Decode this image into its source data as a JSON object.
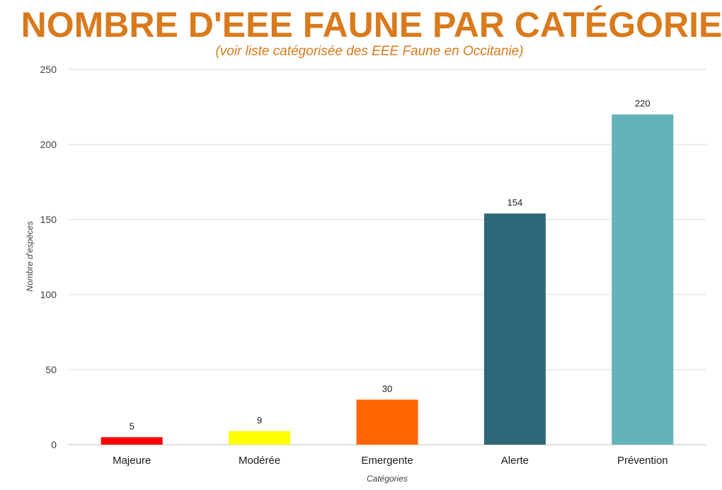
{
  "chart_data": {
    "type": "bar",
    "title": "NOMBRE D'EEE FAUNE PAR CATÉGORIE",
    "subtitle": "(voir liste catégorisée des EEE Faune en Occitanie)",
    "xlabel": "Catégories",
    "ylabel": "Nombre d'espèces",
    "categories": [
      "Majeure",
      "Modérée",
      "Emergente",
      "Alerte",
      "Prévention"
    ],
    "values": [
      5,
      9,
      30,
      154,
      220
    ],
    "colors": [
      "#ff0000",
      "#ffff00",
      "#ff6600",
      "#2e6878",
      "#64b3bb"
    ],
    "ylim": [
      0,
      250
    ],
    "yticks": [
      0,
      50,
      100,
      150,
      200,
      250
    ],
    "grid": true,
    "legend": "none"
  }
}
